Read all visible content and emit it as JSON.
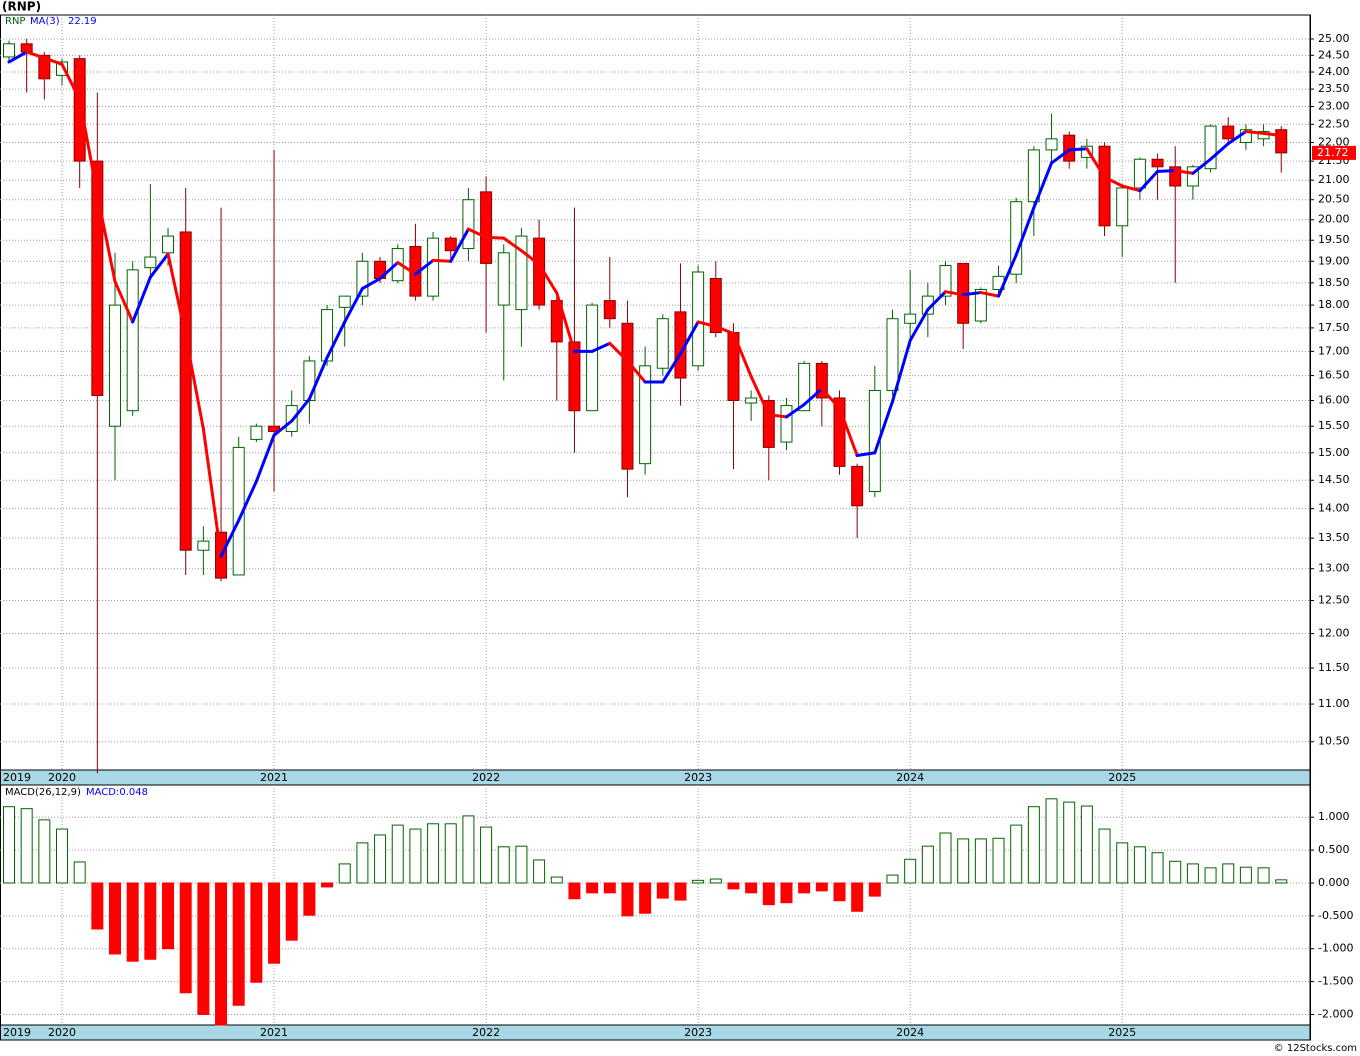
{
  "chart_data": [
    {
      "type": "candlestick",
      "title": "(RNP)",
      "symbol": "RNP",
      "categories": [
        "2019",
        null,
        null,
        "2020",
        null,
        null,
        null,
        null,
        null,
        null,
        null,
        null,
        null,
        null,
        null,
        "2021",
        null,
        null,
        null,
        null,
        null,
        null,
        null,
        null,
        null,
        null,
        null,
        "2022",
        null,
        null,
        null,
        null,
        null,
        null,
        null,
        null,
        null,
        null,
        null,
        "2023",
        null,
        null,
        null,
        null,
        null,
        null,
        null,
        null,
        null,
        null,
        null,
        "2024",
        null,
        null,
        null,
        null,
        null,
        null,
        null,
        null,
        null,
        null,
        null,
        "2025",
        null,
        null,
        null,
        null,
        null,
        null,
        null,
        null,
        null
      ],
      "open": [
        24.45,
        24.85,
        24.5,
        23.9,
        24.4,
        21.5,
        15.5,
        15.8,
        18.85,
        19.2,
        19.7,
        13.3,
        13.6,
        12.9,
        15.25,
        15.5,
        15.4,
        16.0,
        16.8,
        17.95,
        18.2,
        19.0,
        18.55,
        19.35,
        18.2,
        19.55,
        19.3,
        20.7,
        18.0,
        17.9,
        19.55,
        18.1,
        17.2,
        15.8,
        18.1,
        17.6,
        14.8,
        16.65,
        17.85,
        16.7,
        18.6,
        17.4,
        15.95,
        16.0,
        15.2,
        15.8,
        16.75,
        16.05,
        14.75,
        14.3,
        16.2,
        17.6,
        17.8,
        18.2,
        18.95,
        17.65,
        18.35,
        18.7,
        20.45,
        21.8,
        22.2,
        21.6,
        21.9,
        19.85,
        20.8,
        21.55,
        21.35,
        20.85,
        21.3,
        22.45,
        22.0,
        22.1,
        22.35
      ],
      "high": [
        24.95,
        25.0,
        24.6,
        24.4,
        24.5,
        23.4,
        19.2,
        19.0,
        20.9,
        19.8,
        20.8,
        13.7,
        20.3,
        15.3,
        15.55,
        21.8,
        16.2,
        16.9,
        18.0,
        18.2,
        19.2,
        19.1,
        19.4,
        19.9,
        19.7,
        19.6,
        20.8,
        21.1,
        19.4,
        19.8,
        20.0,
        18.3,
        20.3,
        18.05,
        19.1,
        18.1,
        17.1,
        17.8,
        18.95,
        18.9,
        19.0,
        17.6,
        16.2,
        16.1,
        16.05,
        16.8,
        16.8,
        16.2,
        14.8,
        16.7,
        17.9,
        18.8,
        18.5,
        19.0,
        18.95,
        18.4,
        18.9,
        20.55,
        21.9,
        22.8,
        22.3,
        22.1,
        22.0,
        20.9,
        21.6,
        21.7,
        21.9,
        21.4,
        22.5,
        22.7,
        22.5,
        22.5,
        22.45
      ],
      "low": [
        24.3,
        23.4,
        23.2,
        23.6,
        20.8,
        10.1,
        14.5,
        15.7,
        18.6,
        18.9,
        12.9,
        12.9,
        12.8,
        12.9,
        15.2,
        14.3,
        15.3,
        15.55,
        16.7,
        17.1,
        18.0,
        18.5,
        18.5,
        18.1,
        18.1,
        19.0,
        19.0,
        17.4,
        16.4,
        17.1,
        17.9,
        16.0,
        15.0,
        15.8,
        17.5,
        14.2,
        14.6,
        16.5,
        15.9,
        16.6,
        17.3,
        14.7,
        15.6,
        14.5,
        15.05,
        15.8,
        15.5,
        14.6,
        13.5,
        14.2,
        16.1,
        17.1,
        17.3,
        18.0,
        17.05,
        17.6,
        18.2,
        18.5,
        19.6,
        21.4,
        21.3,
        21.3,
        19.6,
        19.1,
        20.5,
        20.5,
        18.5,
        20.5,
        21.2,
        22.0,
        21.8,
        21.9,
        21.2
      ],
      "close": [
        24.85,
        24.6,
        23.8,
        24.3,
        21.5,
        16.1,
        18.0,
        18.8,
        19.1,
        19.6,
        13.3,
        13.45,
        12.85,
        15.1,
        15.5,
        15.4,
        15.9,
        16.8,
        17.9,
        18.2,
        19.0,
        18.6,
        19.3,
        18.2,
        19.55,
        19.25,
        20.5,
        18.95,
        19.2,
        19.6,
        18.0,
        17.2,
        15.8,
        18.0,
        17.7,
        14.7,
        16.7,
        17.7,
        16.45,
        18.75,
        17.4,
        16.0,
        16.05,
        15.1,
        15.9,
        16.75,
        16.05,
        14.75,
        14.05,
        16.2,
        17.7,
        17.8,
        18.2,
        18.9,
        17.6,
        18.35,
        18.65,
        20.45,
        21.8,
        22.1,
        21.5,
        21.9,
        19.85,
        20.8,
        21.55,
        21.35,
        20.85,
        21.35,
        22.45,
        22.1,
        22.35,
        22.3,
        21.72
      ],
      "up_color": "#006400",
      "down_color": "#ff0000",
      "down_edge_color": "#8b0000",
      "ma": {
        "name": "MA(3)",
        "up_color": "#0000ff",
        "down_color": "#ff0000",
        "values": [
          24.3,
          24.6,
          24.42,
          24.23,
          23.2,
          20.63,
          18.53,
          17.63,
          18.63,
          19.17,
          17.33,
          15.45,
          13.2,
          13.8,
          14.48,
          15.33,
          15.6,
          16.03,
          16.87,
          17.63,
          18.37,
          18.6,
          18.97,
          18.7,
          19.02,
          19.0,
          19.77,
          19.57,
          19.55,
          19.25,
          18.93,
          18.27,
          17.0,
          17.0,
          17.17,
          16.8,
          16.37,
          16.37,
          16.95,
          17.63,
          17.53,
          17.38,
          16.48,
          15.72,
          15.68,
          15.92,
          16.23,
          15.85,
          14.95,
          15.0,
          15.98,
          17.23,
          17.9,
          18.3,
          18.23,
          18.28,
          18.2,
          19.15,
          20.3,
          21.45,
          21.8,
          21.83,
          21.08,
          20.85,
          20.73,
          21.23,
          21.25,
          21.18,
          21.55,
          21.97,
          22.3,
          22.25,
          22.19
        ]
      },
      "log_scale": true,
      "ylim": [
        10.14,
        25.75
      ],
      "grid": true,
      "yticks": [
        {
          "value": 25,
          "label": "25.00"
        },
        {
          "value": 24.5,
          "label": "24.50"
        },
        {
          "value": 24,
          "label": "24.00"
        },
        {
          "value": 23.5,
          "label": "23.50"
        },
        {
          "value": 23,
          "label": "23.00"
        },
        {
          "value": 22.5,
          "label": "22.50"
        },
        {
          "value": 22,
          "label": "22.00"
        },
        {
          "value": 21.5,
          "label": "21.50"
        },
        {
          "value": 21,
          "label": "21.00"
        },
        {
          "value": 20.5,
          "label": "20.50"
        },
        {
          "value": 20,
          "label": "20.00"
        },
        {
          "value": 19.5,
          "label": "19.50"
        },
        {
          "value": 19,
          "label": "19.00"
        },
        {
          "value": 18.5,
          "label": "18.50"
        },
        {
          "value": 18,
          "label": "18.00"
        },
        {
          "value": 17.5,
          "label": "17.50"
        },
        {
          "value": 17,
          "label": "17.00"
        },
        {
          "value": 16.5,
          "label": "16.50"
        },
        {
          "value": 16,
          "label": "16.00"
        },
        {
          "value": 15.5,
          "label": "15.50"
        },
        {
          "value": 15,
          "label": "15.00"
        },
        {
          "value": 14.5,
          "label": "14.50"
        },
        {
          "value": 14,
          "label": "14.00"
        },
        {
          "value": 13.5,
          "label": "13.50"
        },
        {
          "value": 13,
          "label": "13.00"
        },
        {
          "value": 12.5,
          "label": "12.50"
        },
        {
          "value": 12,
          "label": "12.00"
        },
        {
          "value": 11.5,
          "label": "11.50"
        },
        {
          "value": 11,
          "label": "11.00"
        },
        {
          "value": 10.5,
          "label": "10.50"
        }
      ]
    },
    {
      "type": "bar",
      "name": "MACD(26,12,9)",
      "value_text": "MACD:0.048",
      "categories": [
        "2019",
        null,
        null,
        "2020",
        null,
        null,
        null,
        null,
        null,
        null,
        null,
        null,
        null,
        null,
        null,
        "2021",
        null,
        null,
        null,
        null,
        null,
        null,
        null,
        null,
        null,
        null,
        null,
        "2022",
        null,
        null,
        null,
        null,
        null,
        null,
        null,
        null,
        null,
        null,
        null,
        "2023",
        null,
        null,
        null,
        null,
        null,
        null,
        null,
        null,
        null,
        null,
        null,
        "2024",
        null,
        null,
        null,
        null,
        null,
        null,
        null,
        null,
        null,
        null,
        null,
        "2025",
        null,
        null,
        null,
        null,
        null,
        null,
        null,
        null,
        null
      ],
      "values": [
        1.16,
        1.13,
        0.96,
        0.82,
        0.32,
        -0.7,
        -1.08,
        -1.19,
        -1.16,
        -1.0,
        -1.67,
        -2.0,
        -2.16,
        -1.86,
        -1.51,
        -1.22,
        -0.87,
        -0.49,
        -0.06,
        0.29,
        0.61,
        0.73,
        0.88,
        0.82,
        0.9,
        0.9,
        1.02,
        0.85,
        0.55,
        0.56,
        0.35,
        0.09,
        -0.24,
        -0.15,
        -0.15,
        -0.5,
        -0.46,
        -0.23,
        -0.26,
        0.04,
        0.06,
        -0.09,
        -0.15,
        -0.33,
        -0.3,
        -0.15,
        -0.12,
        -0.27,
        -0.43,
        -0.2,
        0.12,
        0.36,
        0.56,
        0.76,
        0.67,
        0.67,
        0.68,
        0.88,
        1.16,
        1.28,
        1.23,
        1.17,
        0.82,
        0.61,
        0.55,
        0.46,
        0.33,
        0.29,
        0.23,
        0.29,
        0.24,
        0.23,
        0.048
      ],
      "positive_color": "#006400",
      "negative_color": "#ff0000",
      "label_color": "#0000ff",
      "ylim": [
        -2.16,
        1.49
      ],
      "grid": true,
      "yticks": [
        {
          "value": 1,
          "label": "1.000"
        },
        {
          "value": 0.5,
          "label": "0.500"
        },
        {
          "value": 0,
          "label": "0.000"
        },
        {
          "value": -0.5,
          "label": "-0.500"
        },
        {
          "value": -1,
          "label": "-1.000"
        },
        {
          "value": -1.5,
          "label": "-1.500"
        },
        {
          "value": -2,
          "label": "-2.000"
        }
      ]
    }
  ],
  "credit": "© 12Stocks.com"
}
